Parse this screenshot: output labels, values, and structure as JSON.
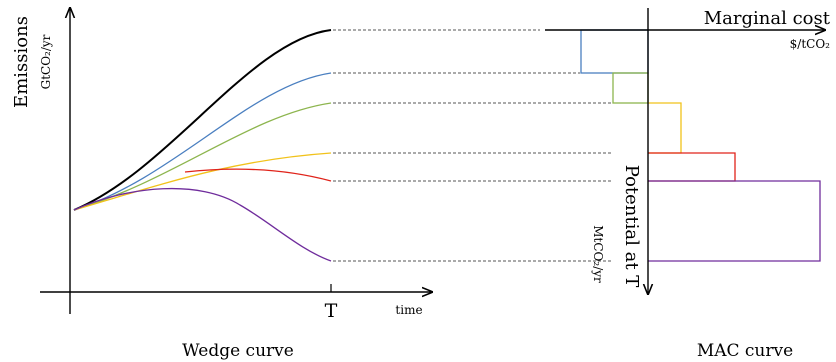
{
  "left_panel": {
    "caption": "Wedge curve",
    "y_axis_label": "Emissions",
    "y_axis_unit": "GtCO₂/yr",
    "x_axis_label": "time",
    "x_tick_label": "T"
  },
  "right_panel": {
    "caption": "MAC curve",
    "x_axis_label": "Marginal cost",
    "x_axis_unit": "$/tCO₂",
    "y_axis_label": "Potential at T",
    "y_axis_unit": "MtCO₂/yr"
  },
  "colors": {
    "baseline": "#000000",
    "blue": "#4a7fc0",
    "green": "#8db54e",
    "yellow": "#f1c21b",
    "red": "#e0231a",
    "purple": "#6f2c9c",
    "dotted": "#555555"
  }
}
